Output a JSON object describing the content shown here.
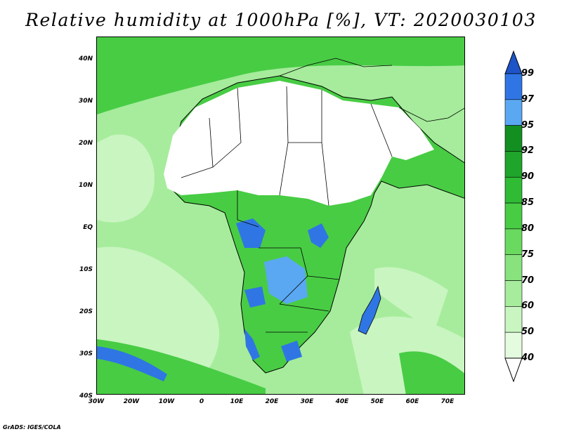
{
  "title": "Relative humidity at 1000hPa [%], VT: 2020030103",
  "credit": "GrADS: IGES/COLA",
  "lat_ticks": [
    "40N",
    "30N",
    "20N",
    "10N",
    "EQ",
    "10S",
    "20S",
    "30S",
    "40S"
  ],
  "lon_ticks": [
    "30W",
    "20W",
    "10W",
    "0",
    "10E",
    "20E",
    "30E",
    "40E",
    "50E",
    "60E",
    "70E"
  ],
  "colorbar": {
    "levels": [
      "40",
      "50",
      "60",
      "70",
      "75",
      "80",
      "85",
      "90",
      "92",
      "95",
      "97",
      "99"
    ],
    "bins": [
      {
        "label": "<40",
        "color": "#ffffff"
      },
      {
        "label": "40-50",
        "color": "#e4fbdf"
      },
      {
        "label": "50-60",
        "color": "#c9f5c1"
      },
      {
        "label": "60-70",
        "color": "#a6ec9c"
      },
      {
        "label": "70-75",
        "color": "#88e27d"
      },
      {
        "label": "75-80",
        "color": "#6ad95f"
      },
      {
        "label": "80-85",
        "color": "#48cc44"
      },
      {
        "label": "85-90",
        "color": "#2fbb34"
      },
      {
        "label": "90-92",
        "color": "#1fa52c"
      },
      {
        "label": "92-95",
        "color": "#128f20"
      },
      {
        "label": "95-97",
        "color": "#5aa8f2"
      },
      {
        "label": "97-99",
        "color": "#2f76e4"
      },
      {
        "label": ">99",
        "color": "#1d54c8"
      }
    ]
  },
  "map_fill": {
    "sea": "#a6ec9c",
    "dry": "#ffffff",
    "humid": "#48cc44",
    "saturated": "#2f76e4",
    "border": "#000000"
  }
}
